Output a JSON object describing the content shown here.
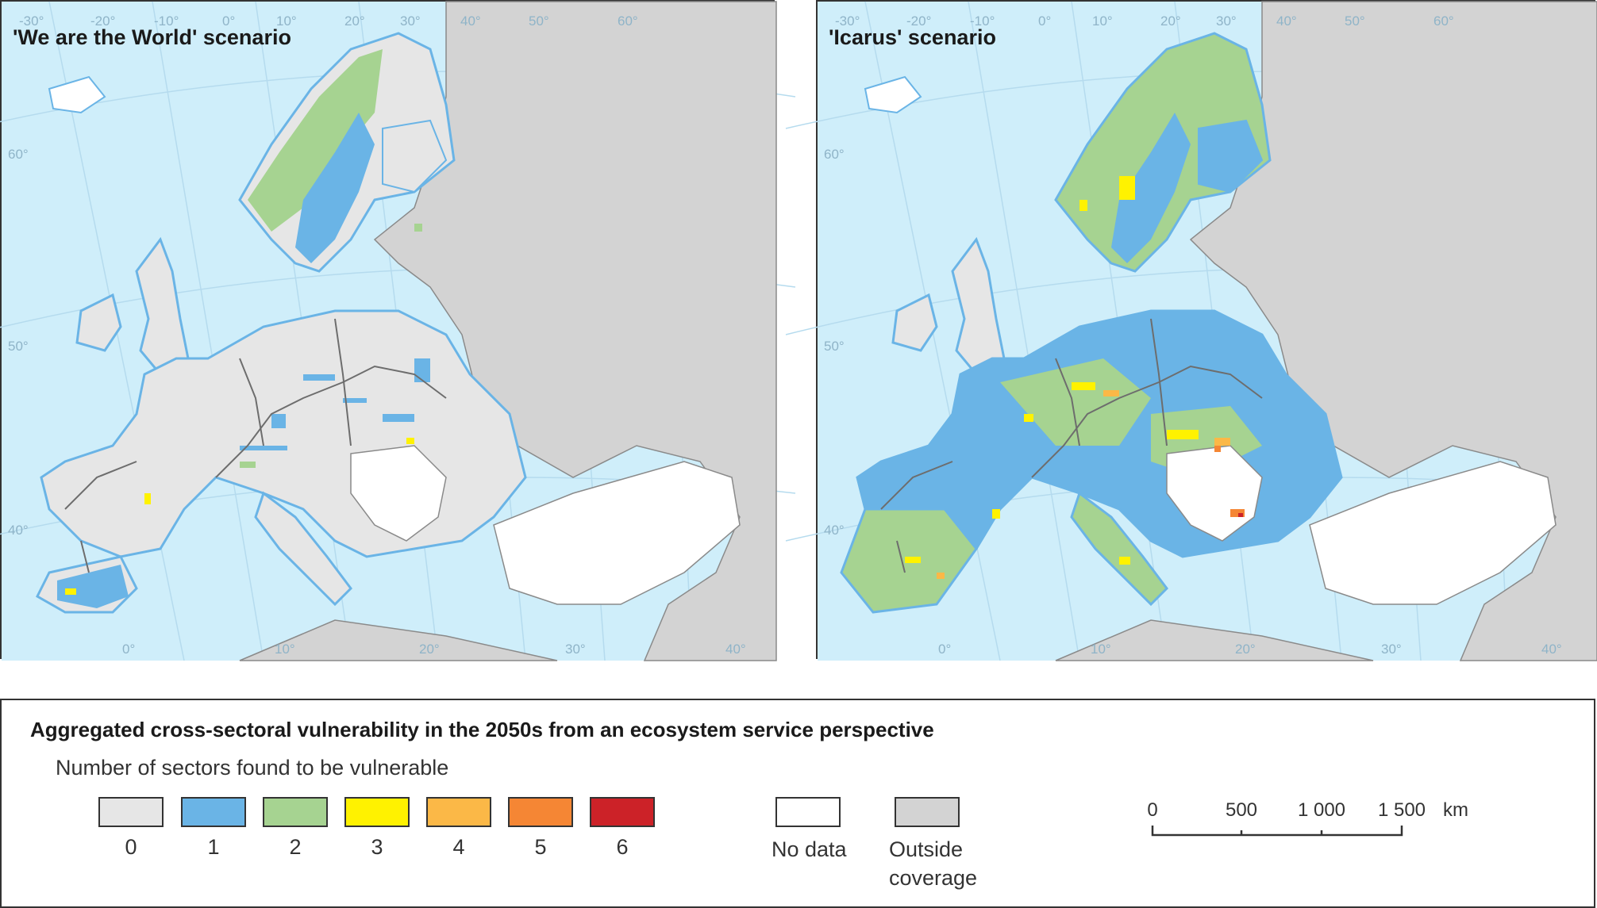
{
  "maps": [
    {
      "title": "'We are the World' scenario",
      "dominant_classes": [
        "0",
        "1",
        "2"
      ],
      "colors": {
        "sea": "#cfeefa",
        "land_grey": "#e6e6e6",
        "outside": "#d3d3d3",
        "no_data": "#ffffff"
      }
    },
    {
      "title": "'Icarus' scenario",
      "dominant_classes": [
        "1",
        "2",
        "3",
        "4",
        "5"
      ],
      "colors": {
        "sea": "#cfeefa",
        "land_grey": "#e6e6e6",
        "outside": "#d3d3d3",
        "no_data": "#ffffff"
      }
    }
  ],
  "graticule_labels": {
    "left": [
      "-30°",
      "-20°",
      "-10°",
      "0°",
      "10°",
      "20°",
      "30°",
      "40°",
      "50°",
      "60°",
      "60°",
      "50°",
      "40°",
      "0°",
      "10°",
      "20°",
      "30°",
      "40°"
    ],
    "right": [
      "-30°",
      "-20°",
      "-10°",
      "0°",
      "10°",
      "20°",
      "30°",
      "40°",
      "50°",
      "60°",
      "60°",
      "50°",
      "40°",
      "0°",
      "10°",
      "20°",
      "30°",
      "40°"
    ]
  },
  "legend": {
    "title": "Aggregated cross-sectoral vulnerability in the 2050s from an ecosystem service perspective",
    "subtitle": "Number of sectors found to be vulnerable",
    "classes": [
      {
        "label": "0",
        "color": "#e6e6e6"
      },
      {
        "label": "1",
        "color": "#6ab4e6"
      },
      {
        "label": "2",
        "color": "#a6d391"
      },
      {
        "label": "3",
        "color": "#fff200"
      },
      {
        "label": "4",
        "color": "#fbb847"
      },
      {
        "label": "5",
        "color": "#f58634"
      },
      {
        "label": "6",
        "color": "#cc2228"
      }
    ],
    "no_data": {
      "label": "No data",
      "color": "#ffffff"
    },
    "outside": {
      "label_line1": "Outside",
      "label_line2": "coverage",
      "color": "#d3d3d3"
    }
  },
  "scale": {
    "ticks": [
      "0",
      "500",
      "1 000",
      "1 500"
    ],
    "unit": "km"
  }
}
